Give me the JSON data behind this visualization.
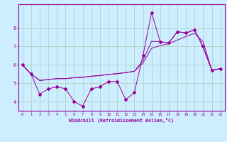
{
  "xlabel": "Windchill (Refroidissement éolien,°C)",
  "bg_color": "#cceeff",
  "grid_color": "#aaccbb",
  "line_color": "#990099",
  "xlim": [
    -0.5,
    23.5
  ],
  "ylim": [
    3.5,
    9.3
  ],
  "xticks": [
    0,
    1,
    2,
    3,
    4,
    5,
    6,
    7,
    8,
    9,
    10,
    11,
    12,
    13,
    14,
    15,
    16,
    17,
    18,
    19,
    20,
    21,
    22,
    23
  ],
  "yticks": [
    4,
    5,
    6,
    7,
    8
  ],
  "series1_x": [
    0,
    1,
    2,
    3,
    4,
    5,
    6,
    7,
    8,
    9,
    10,
    11,
    12,
    13,
    14,
    15,
    16,
    17,
    18,
    19,
    20,
    21,
    22,
    23
  ],
  "series1_y": [
    6.0,
    5.5,
    4.4,
    4.7,
    4.8,
    4.7,
    4.0,
    3.75,
    4.7,
    4.8,
    5.1,
    5.1,
    4.1,
    4.5,
    6.5,
    8.85,
    7.25,
    7.2,
    7.8,
    7.75,
    7.9,
    7.0,
    5.7,
    5.8
  ],
  "series2_x": [
    0,
    1,
    2,
    3,
    4,
    5,
    6,
    7,
    8,
    9,
    10,
    11,
    12,
    13,
    14,
    15,
    16,
    17,
    18,
    19,
    20,
    21,
    22,
    23
  ],
  "series2_y": [
    6.0,
    5.5,
    5.15,
    5.2,
    5.25,
    5.25,
    5.3,
    5.32,
    5.38,
    5.42,
    5.48,
    5.52,
    5.58,
    5.65,
    6.1,
    6.9,
    7.05,
    7.15,
    7.35,
    7.55,
    7.72,
    7.25,
    5.7,
    5.8
  ],
  "series3_x": [
    0,
    1,
    2,
    3,
    4,
    5,
    6,
    7,
    8,
    9,
    10,
    11,
    12,
    13,
    14,
    15,
    16,
    17,
    18,
    19,
    20,
    21,
    22,
    23
  ],
  "series3_y": [
    6.0,
    5.5,
    5.15,
    5.2,
    5.25,
    5.25,
    5.3,
    5.32,
    5.38,
    5.42,
    5.48,
    5.52,
    5.58,
    5.65,
    6.25,
    7.28,
    7.28,
    7.18,
    7.82,
    7.72,
    7.92,
    6.92,
    5.7,
    5.8
  ]
}
